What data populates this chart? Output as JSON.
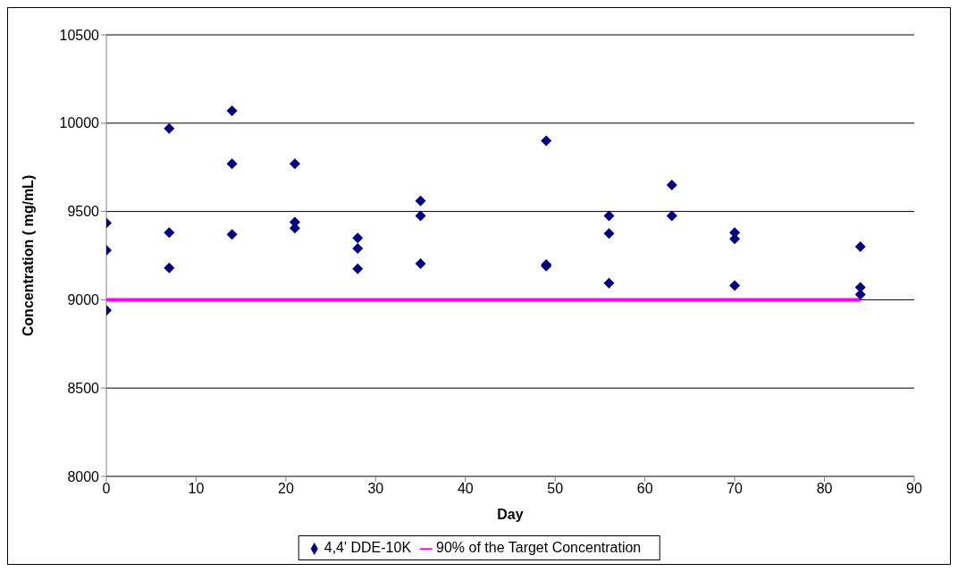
{
  "chart_data": {
    "type": "scatter",
    "xlabel": "Day",
    "ylabel": "Concentration ( mg/mL)",
    "xlim": [
      0,
      90
    ],
    "xticks": [
      0,
      10,
      20,
      30,
      40,
      50,
      60,
      70,
      80,
      90
    ],
    "ylim": [
      8000,
      10500
    ],
    "yticks": [
      8000,
      8500,
      9000,
      9500,
      10000,
      10500
    ],
    "grid": "y",
    "legend": "bottom",
    "marker": "diamond",
    "series": [
      {
        "name": "4,4' DDE-10K",
        "color": "#000080",
        "x": [
          0,
          0,
          0,
          7,
          7,
          7,
          14,
          14,
          14,
          21,
          21,
          21,
          28,
          28,
          28,
          35,
          35,
          35,
          49,
          49,
          49,
          56,
          56,
          56,
          63,
          63,
          70,
          70,
          70,
          84,
          84,
          84
        ],
        "values": [
          9435,
          9280,
          8940,
          9970,
          9380,
          9180,
          10070,
          9770,
          9370,
          9770,
          9440,
          9405,
          9350,
          9290,
          9175,
          9560,
          9475,
          9205,
          9900,
          9200,
          9190,
          9475,
          9375,
          9095,
          9650,
          9475,
          9380,
          9345,
          9080,
          9300,
          9070,
          9030
        ]
      },
      {
        "name": "90% of the Target Concentration",
        "type": "line",
        "color": "#ff00ff",
        "marker": "none",
        "x": [
          0,
          84
        ],
        "values": [
          9000,
          9000
        ]
      }
    ]
  }
}
